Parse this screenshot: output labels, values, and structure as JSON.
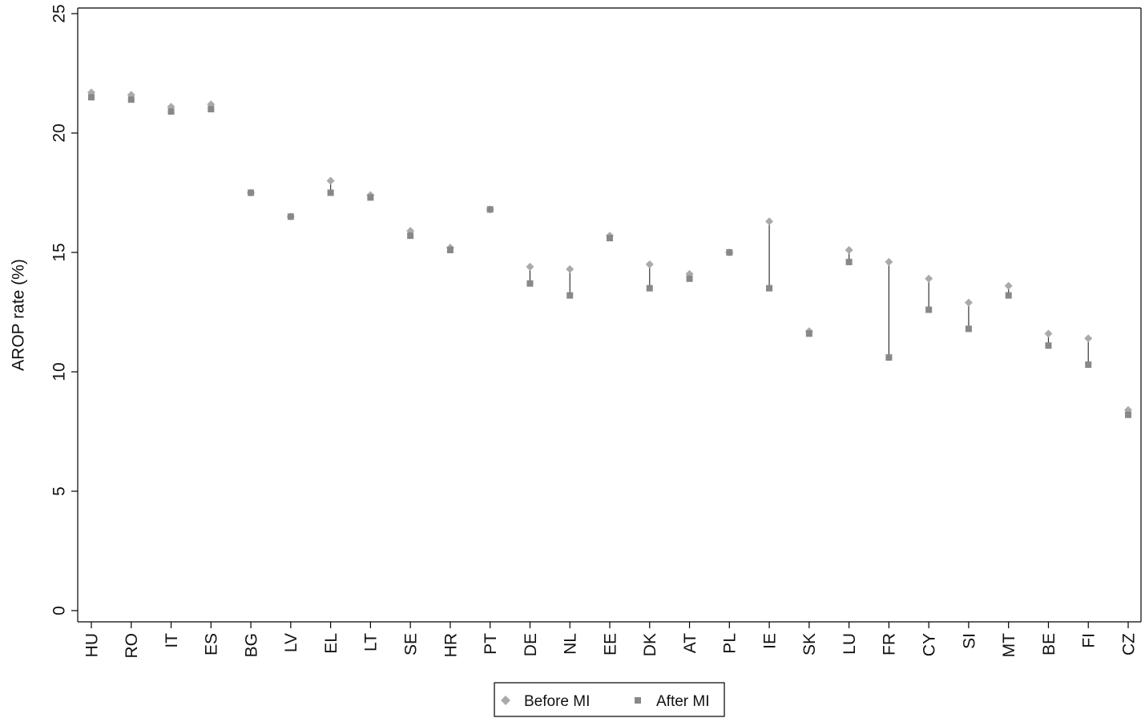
{
  "chart_data": {
    "type": "scatter",
    "ylabel": "AROP rate (%)",
    "xlabel": "",
    "ylim": [
      0,
      25
    ],
    "yticks": [
      0,
      5,
      10,
      15,
      20,
      25
    ],
    "grid": false,
    "legend_position": "bottom-center",
    "categories": [
      "HU",
      "RO",
      "IT",
      "ES",
      "BG",
      "LV",
      "EL",
      "LT",
      "SE",
      "HR",
      "PT",
      "DE",
      "NL",
      "EE",
      "DK",
      "AT",
      "PL",
      "IE",
      "SK",
      "LU",
      "FR",
      "CY",
      "SI",
      "MT",
      "BE",
      "FI",
      "CZ"
    ],
    "series": [
      {
        "name": "Before MI",
        "marker": "diamond",
        "color": "#aaaaaa",
        "values": [
          21.7,
          21.6,
          21.1,
          21.2,
          17.5,
          16.5,
          18.0,
          17.4,
          15.9,
          15.2,
          16.8,
          14.4,
          14.3,
          15.7,
          14.5,
          14.1,
          15.0,
          16.3,
          11.7,
          15.1,
          14.6,
          13.9,
          12.9,
          13.6,
          11.6,
          11.4,
          8.4
        ]
      },
      {
        "name": "After MI",
        "marker": "square",
        "color": "#888888",
        "values": [
          21.5,
          21.4,
          20.9,
          21.0,
          17.5,
          16.5,
          17.5,
          17.3,
          15.7,
          15.1,
          16.8,
          13.7,
          13.2,
          15.6,
          13.5,
          13.9,
          15.0,
          13.5,
          11.6,
          14.6,
          10.6,
          12.6,
          11.8,
          13.2,
          11.1,
          10.3,
          8.2
        ]
      }
    ]
  }
}
